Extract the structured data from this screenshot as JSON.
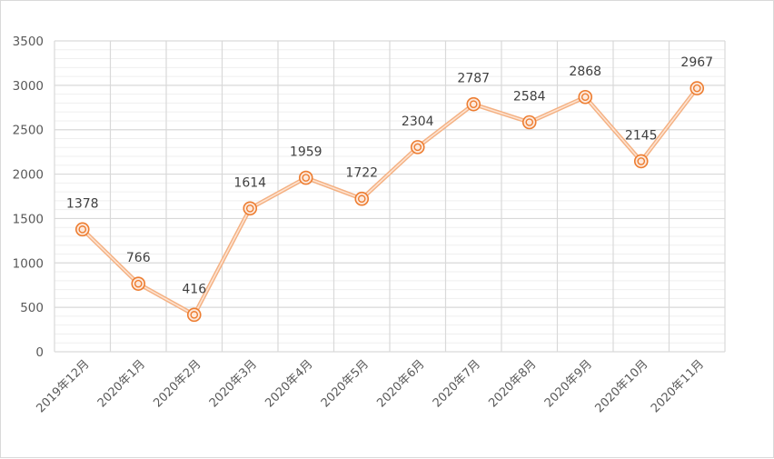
{
  "chart_data": {
    "type": "line",
    "title": "",
    "xlabel": "",
    "ylabel": "",
    "categories": [
      "2019年12月",
      "2020年1月",
      "2020年2月",
      "2020年3月",
      "2020年4月",
      "2020年5月",
      "2020年6月",
      "2020年7月",
      "2020年8月",
      "2020年9月",
      "2020年10月",
      "2020年11月"
    ],
    "series": [
      {
        "values": [
          1378,
          766,
          416,
          1614,
          1959,
          1722,
          2304,
          2787,
          2584,
          2868,
          2145,
          2967
        ],
        "color": "#f4b183",
        "marker_color": "#ed7d31"
      }
    ],
    "ylim": [
      0,
      3500
    ],
    "yticks": [
      0,
      500,
      1000,
      1500,
      2000,
      2500,
      3000,
      3500
    ],
    "grid": true,
    "legend": "none",
    "data_labels": true
  },
  "colors": {
    "gridline": "#d9d9d9",
    "axis_text": "#595959",
    "label_text": "#404040"
  }
}
